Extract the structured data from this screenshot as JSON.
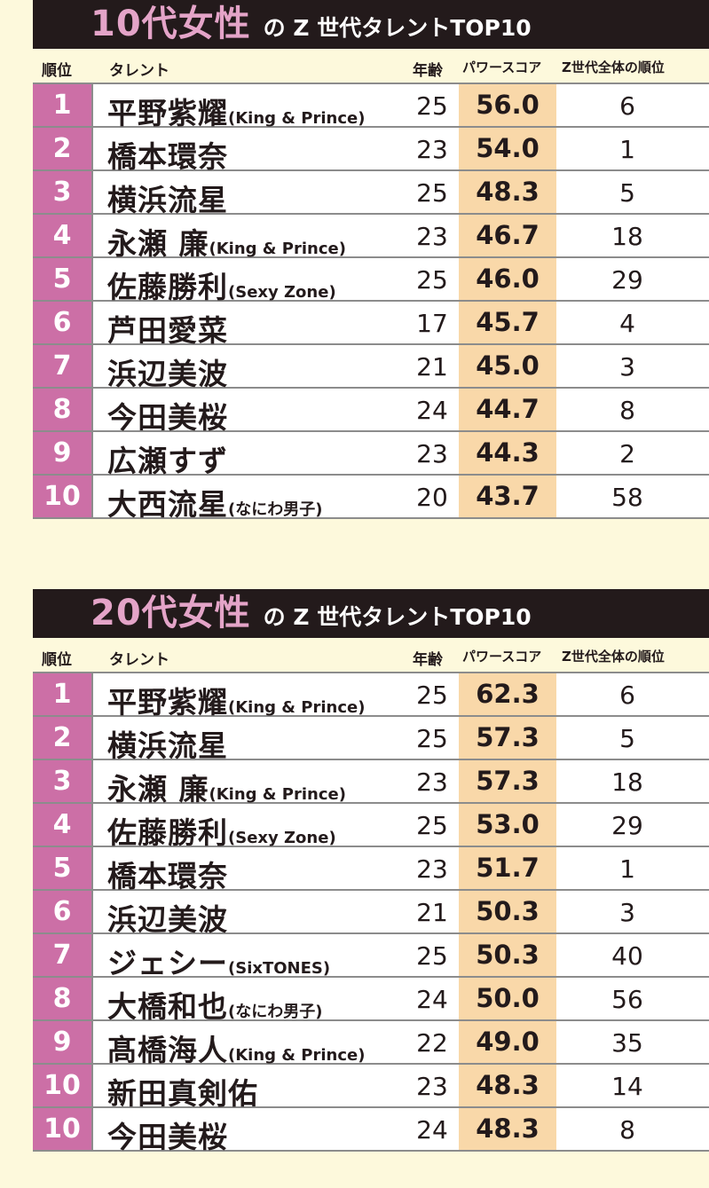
{
  "sections": [
    {
      "title_big": "10代女性",
      "title_small": "の Z 世代タレントTOP10",
      "headers": {
        "rank": "順位",
        "talent": "タレント",
        "age": "年齢",
        "score": "パワースコア",
        "overall": "Z世代全体の順位"
      },
      "rows": [
        {
          "rank": "1",
          "name": "平野紫耀",
          "group": "(King & Prince)",
          "age": "25",
          "score": "56.0",
          "overall": "6"
        },
        {
          "rank": "2",
          "name": "橋本環奈",
          "group": "",
          "age": "23",
          "score": "54.0",
          "overall": "1"
        },
        {
          "rank": "3",
          "name": "横浜流星",
          "group": "",
          "age": "25",
          "score": "48.3",
          "overall": "5"
        },
        {
          "rank": "4",
          "name": "永瀬 廉",
          "group": "(King & Prince)",
          "age": "23",
          "score": "46.7",
          "overall": "18"
        },
        {
          "rank": "5",
          "name": "佐藤勝利",
          "group": "(Sexy Zone)",
          "age": "25",
          "score": "46.0",
          "overall": "29"
        },
        {
          "rank": "6",
          "name": "芦田愛菜",
          "group": "",
          "age": "17",
          "score": "45.7",
          "overall": "4"
        },
        {
          "rank": "7",
          "name": "浜辺美波",
          "group": "",
          "age": "21",
          "score": "45.0",
          "overall": "3"
        },
        {
          "rank": "8",
          "name": "今田美桜",
          "group": "",
          "age": "24",
          "score": "44.7",
          "overall": "8"
        },
        {
          "rank": "9",
          "name": "広瀬すず",
          "group": "",
          "age": "23",
          "score": "44.3",
          "overall": "2"
        },
        {
          "rank": "10",
          "name": "大西流星",
          "group": "(なにわ男子)",
          "age": "20",
          "score": "43.7",
          "overall": "58"
        }
      ]
    },
    {
      "title_big": "20代女性",
      "title_small": "の Z 世代タレントTOP10",
      "headers": {
        "rank": "順位",
        "talent": "タレント",
        "age": "年齢",
        "score": "パワースコア",
        "overall": "Z世代全体の順位"
      },
      "rows": [
        {
          "rank": "1",
          "name": "平野紫耀",
          "group": "(King & Prince)",
          "age": "25",
          "score": "62.3",
          "overall": "6"
        },
        {
          "rank": "2",
          "name": "横浜流星",
          "group": "",
          "age": "25",
          "score": "57.3",
          "overall": "5"
        },
        {
          "rank": "3",
          "name": "永瀬 廉",
          "group": "(King & Prince)",
          "age": "23",
          "score": "57.3",
          "overall": "18"
        },
        {
          "rank": "4",
          "name": "佐藤勝利",
          "group": "(Sexy Zone)",
          "age": "25",
          "score": "53.0",
          "overall": "29"
        },
        {
          "rank": "5",
          "name": "橋本環奈",
          "group": "",
          "age": "23",
          "score": "51.7",
          "overall": "1"
        },
        {
          "rank": "6",
          "name": "浜辺美波",
          "group": "",
          "age": "21",
          "score": "50.3",
          "overall": "3"
        },
        {
          "rank": "7",
          "name": "ジェシー",
          "group": "(SixTONES)",
          "age": "25",
          "score": "50.3",
          "overall": "40"
        },
        {
          "rank": "8",
          "name": "大橋和也",
          "group": "(なにわ男子)",
          "age": "24",
          "score": "50.0",
          "overall": "56"
        },
        {
          "rank": "9",
          "name": "髙橋海人",
          "group": "(King & Prince)",
          "age": "22",
          "score": "49.0",
          "overall": "35"
        },
        {
          "rank": "10",
          "name": "新田真剣佑",
          "group": "",
          "age": "23",
          "score": "48.3",
          "overall": "14"
        },
        {
          "rank": "10",
          "name": "今田美桜",
          "group": "",
          "age": "24",
          "score": "48.3",
          "overall": "8"
        }
      ]
    }
  ]
}
